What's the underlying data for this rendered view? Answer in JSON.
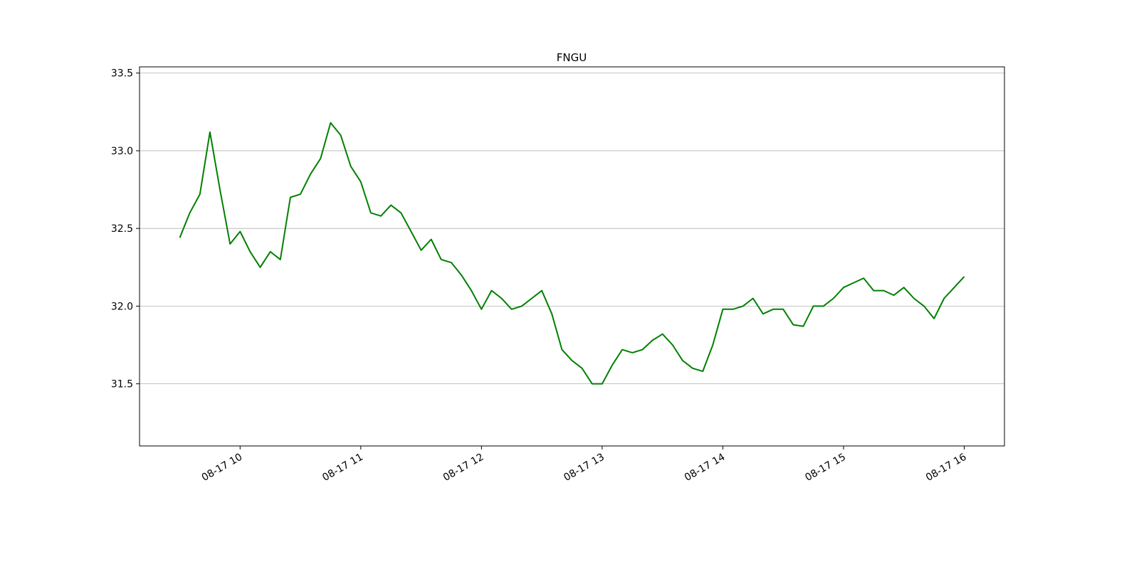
{
  "chart_data": {
    "type": "line",
    "title": "FNGU",
    "x": [
      "08-17 09:30",
      "08-17 09:35",
      "08-17 09:40",
      "08-17 09:45",
      "08-17 09:50",
      "08-17 09:55",
      "08-17 10:00",
      "08-17 10:05",
      "08-17 10:10",
      "08-17 10:15",
      "08-17 10:20",
      "08-17 10:25",
      "08-17 10:30",
      "08-17 10:35",
      "08-17 10:40",
      "08-17 10:45",
      "08-17 10:50",
      "08-17 10:55",
      "08-17 11:00",
      "08-17 11:05",
      "08-17 11:10",
      "08-17 11:15",
      "08-17 11:20",
      "08-17 11:25",
      "08-17 11:30",
      "08-17 11:35",
      "08-17 11:40",
      "08-17 11:45",
      "08-17 11:50",
      "08-17 11:55",
      "08-17 12:00",
      "08-17 12:05",
      "08-17 12:10",
      "08-17 12:15",
      "08-17 12:20",
      "08-17 12:25",
      "08-17 12:30",
      "08-17 12:35",
      "08-17 12:40",
      "08-17 12:45",
      "08-17 12:50",
      "08-17 12:55",
      "08-17 13:00",
      "08-17 13:05",
      "08-17 13:10",
      "08-17 13:15",
      "08-17 13:20",
      "08-17 13:25",
      "08-17 13:30",
      "08-17 13:35",
      "08-17 13:40",
      "08-17 13:45",
      "08-17 13:50",
      "08-17 13:55",
      "08-17 14:00",
      "08-17 14:05",
      "08-17 14:10",
      "08-17 14:15",
      "08-17 14:20",
      "08-17 14:25",
      "08-17 14:30",
      "08-17 14:35",
      "08-17 14:40",
      "08-17 14:45",
      "08-17 14:50",
      "08-17 14:55",
      "08-17 15:00",
      "08-17 15:05",
      "08-17 15:10",
      "08-17 15:15",
      "08-17 15:20",
      "08-17 15:25",
      "08-17 15:30",
      "08-17 15:35",
      "08-17 15:40",
      "08-17 15:45",
      "08-17 15:50",
      "08-17 15:55",
      "08-17 16:00"
    ],
    "values": [
      32.44,
      32.6,
      32.72,
      33.12,
      32.75,
      32.4,
      32.48,
      32.35,
      32.25,
      32.35,
      32.3,
      32.7,
      32.72,
      32.85,
      32.95,
      33.18,
      33.1,
      32.9,
      32.8,
      32.6,
      32.58,
      32.65,
      32.6,
      32.48,
      32.36,
      32.43,
      32.3,
      32.28,
      32.2,
      32.1,
      31.98,
      32.1,
      32.05,
      31.98,
      32.0,
      32.05,
      32.1,
      31.95,
      31.72,
      31.65,
      31.6,
      31.5,
      31.5,
      31.62,
      31.72,
      31.7,
      31.72,
      31.78,
      31.82,
      31.75,
      31.65,
      31.6,
      31.58,
      31.75,
      31.98,
      31.98,
      32.0,
      32.05,
      31.95,
      31.98,
      31.98,
      31.88,
      31.87,
      32.0,
      32.0,
      32.05,
      32.12,
      32.15,
      32.18,
      32.1,
      32.1,
      32.07,
      32.12,
      32.05,
      32.0,
      31.92,
      32.05,
      32.12,
      32.19
    ],
    "color": "#008000",
    "xlim": [
      "08-17 09:10",
      "08-17 16:20"
    ],
    "xticks": [
      {
        "value": "08-17 10:00",
        "label": "08-17 10"
      },
      {
        "value": "08-17 11:00",
        "label": "08-17 11"
      },
      {
        "value": "08-17 12:00",
        "label": "08-17 12"
      },
      {
        "value": "08-17 13:00",
        "label": "08-17 13"
      },
      {
        "value": "08-17 14:00",
        "label": "08-17 14"
      },
      {
        "value": "08-17 15:00",
        "label": "08-17 15"
      },
      {
        "value": "08-17 16:00",
        "label": "08-17 16"
      }
    ],
    "ylim": [
      31.1,
      33.54
    ],
    "yticks": [
      31.5,
      {
        "value": 32,
        "label": "32.0"
      },
      32.5,
      {
        "value": 33,
        "label": "33.0"
      },
      33.5
    ],
    "grid": "y"
  }
}
